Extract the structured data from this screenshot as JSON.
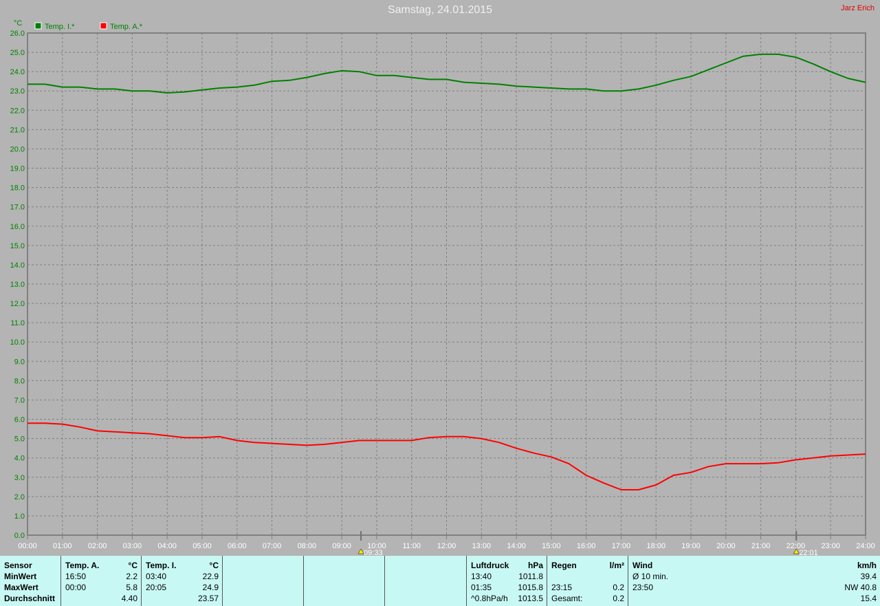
{
  "header": {
    "title": "Samstag, 24.01.2015",
    "author": "Jarz Erich"
  },
  "chart_data": {
    "type": "line",
    "title": "Samstag, 24.01.2015",
    "ylabel": "°C",
    "ylim": [
      0,
      26
    ],
    "xlim": [
      "00:00",
      "24:00"
    ],
    "grid": true,
    "legend_placement": "top-left",
    "yticks": [
      "0.0",
      "1.0",
      "2.0",
      "3.0",
      "4.0",
      "5.0",
      "6.0",
      "7.0",
      "8.0",
      "9.0",
      "10.0",
      "11.0",
      "12.0",
      "13.0",
      "14.0",
      "15.0",
      "16.0",
      "17.0",
      "18.0",
      "19.0",
      "20.0",
      "21.0",
      "22.0",
      "23.0",
      "24.0",
      "25.0",
      "26.0"
    ],
    "xticks": [
      "00:00",
      "01:00",
      "02:00",
      "03:00",
      "04:00",
      "05:00",
      "06:00",
      "07:00",
      "08:00",
      "09:00",
      "10:00",
      "11:00",
      "12:00",
      "13:00",
      "14:00",
      "15:00",
      "16:00",
      "17:00",
      "18:00",
      "19:00",
      "20:00",
      "21:00",
      "22:00",
      "23:00",
      "24:00"
    ],
    "x": [
      "00:00",
      "00:30",
      "01:00",
      "01:30",
      "02:00",
      "02:30",
      "03:00",
      "03:30",
      "04:00",
      "04:30",
      "05:00",
      "05:30",
      "06:00",
      "06:30",
      "07:00",
      "07:30",
      "08:00",
      "08:30",
      "09:00",
      "09:30",
      "10:00",
      "10:30",
      "11:00",
      "11:30",
      "12:00",
      "12:30",
      "13:00",
      "13:30",
      "14:00",
      "14:30",
      "15:00",
      "15:30",
      "16:00",
      "16:30",
      "17:00",
      "17:30",
      "18:00",
      "18:30",
      "19:00",
      "19:30",
      "20:00",
      "20:30",
      "21:00",
      "21:30",
      "22:00",
      "22:30",
      "23:00",
      "23:30",
      "24:00"
    ],
    "series": [
      {
        "name": "Temp. I.*",
        "color": "#008000",
        "values": [
          23.35,
          23.35,
          23.2,
          23.2,
          23.1,
          23.1,
          23.0,
          23.0,
          22.9,
          22.95,
          23.05,
          23.15,
          23.2,
          23.3,
          23.5,
          23.55,
          23.7,
          23.9,
          24.05,
          24.0,
          23.8,
          23.8,
          23.7,
          23.6,
          23.6,
          23.45,
          23.4,
          23.35,
          23.25,
          23.2,
          23.15,
          23.1,
          23.1,
          23.0,
          23.0,
          23.1,
          23.3,
          23.55,
          23.75,
          24.1,
          24.45,
          24.8,
          24.9,
          24.9,
          24.75,
          24.4,
          24.0,
          23.65,
          23.45
        ]
      },
      {
        "name": "Temp. A.*",
        "color": "#ff0000",
        "values": [
          5.8,
          5.8,
          5.75,
          5.6,
          5.4,
          5.35,
          5.3,
          5.25,
          5.15,
          5.05,
          5.05,
          5.1,
          4.9,
          4.8,
          4.75,
          4.7,
          4.65,
          4.7,
          4.8,
          4.9,
          4.9,
          4.9,
          4.9,
          5.05,
          5.1,
          5.1,
          5.0,
          4.8,
          4.5,
          4.25,
          4.05,
          3.7,
          3.1,
          2.7,
          2.35,
          2.35,
          2.6,
          3.1,
          3.25,
          3.55,
          3.7,
          3.7,
          3.7,
          3.75,
          3.9,
          4.0,
          4.1,
          4.15,
          4.2
        ]
      }
    ],
    "markers": [
      {
        "label": "09:33",
        "time": "09:33",
        "icon": "sunrise-icon"
      },
      {
        "label": "22:01",
        "time": "22:01",
        "icon": "sunset-icon"
      }
    ]
  },
  "table": {
    "sensor": {
      "header": "Sensor",
      "rows": [
        "MinWert",
        "MaxWert",
        "Durchschnitt"
      ]
    },
    "temp_a": {
      "header": "Temp. A.",
      "unit": "°C",
      "rows": [
        [
          "16:50",
          "2.2"
        ],
        [
          "00:00",
          "5.8"
        ],
        [
          "",
          "4.40"
        ]
      ]
    },
    "temp_i": {
      "header": "Temp. I.",
      "unit": "°C",
      "rows": [
        [
          "03:40",
          "22.9"
        ],
        [
          "20:05",
          "24.9"
        ],
        [
          "",
          "23.57"
        ]
      ]
    },
    "luftdruck": {
      "header": "Luftdruck",
      "unit": "hPa",
      "rows": [
        [
          "13:40",
          "1011.8"
        ],
        [
          "01:35",
          "1015.8"
        ],
        [
          "^0.8hPa/h",
          "1013.5"
        ]
      ]
    },
    "regen": {
      "header": "Regen",
      "unit": "l/m²",
      "rows": [
        [
          "",
          ""
        ],
        [
          "23:15",
          "0.2"
        ],
        [
          "Gesamt:",
          "0.2"
        ]
      ]
    },
    "wind": {
      "header": "Wind",
      "unit": "km/h",
      "rows": [
        [
          "Ø 10 min.",
          "39.4"
        ],
        [
          "23:50",
          "NW 40.8"
        ],
        [
          "",
          "15.4"
        ]
      ]
    }
  }
}
